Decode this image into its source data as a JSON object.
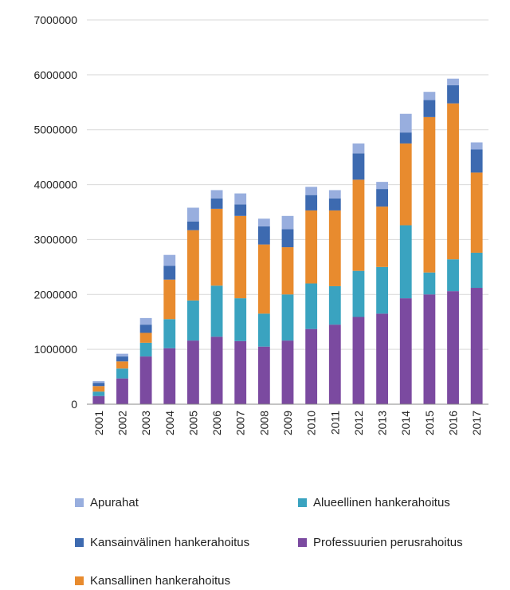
{
  "chart_data": {
    "type": "bar",
    "stacked": true,
    "categories": [
      "2001",
      "2002",
      "2003",
      "2004",
      "2005",
      "2006",
      "2007",
      "2008",
      "2009",
      "2010",
      "2011",
      "2012",
      "2013",
      "2014",
      "2015",
      "2016",
      "2017"
    ],
    "ylim": [
      0,
      7000000
    ],
    "yticks": [
      "0",
      "1000000",
      "2000000",
      "3000000",
      "4000000",
      "5000000",
      "6000000",
      "7000000"
    ],
    "ytick_values": [
      0,
      1000000,
      2000000,
      3000000,
      4000000,
      5000000,
      6000000,
      7000000
    ],
    "grid": true,
    "legend_placement": "bottom",
    "series": [
      {
        "name": "Professuurien perusrahoitus",
        "color": "#7b4aa0",
        "values": [
          150000,
          470000,
          870000,
          1020000,
          1160000,
          1230000,
          1150000,
          1050000,
          1160000,
          1370000,
          1450000,
          1590000,
          1650000,
          1930000,
          2000000,
          2060000,
          2120000
        ]
      },
      {
        "name": "Alueellinen hankerahoitus",
        "color": "#3aa3c0",
        "values": [
          80000,
          180000,
          250000,
          530000,
          730000,
          930000,
          780000,
          600000,
          840000,
          830000,
          700000,
          840000,
          850000,
          1330000,
          400000,
          580000,
          640000
        ]
      },
      {
        "name": "Kansallinen hankerahoitus",
        "color": "#e88b2e",
        "values": [
          100000,
          130000,
          180000,
          720000,
          1280000,
          1400000,
          1500000,
          1260000,
          860000,
          1330000,
          1380000,
          1660000,
          1100000,
          1490000,
          2830000,
          2840000,
          1460000
        ]
      },
      {
        "name": "Kansainvälinen hankerahoitus",
        "color": "#3d6ab0",
        "values": [
          60000,
          90000,
          150000,
          250000,
          160000,
          190000,
          210000,
          330000,
          330000,
          280000,
          220000,
          480000,
          320000,
          200000,
          310000,
          330000,
          420000
        ]
      },
      {
        "name": "Apurahat",
        "color": "#98aede",
        "values": [
          30000,
          50000,
          120000,
          200000,
          250000,
          150000,
          200000,
          140000,
          240000,
          150000,
          150000,
          180000,
          130000,
          340000,
          150000,
          120000,
          130000
        ]
      }
    ]
  },
  "legend": [
    {
      "label": "Apurahat",
      "color": "#98aede"
    },
    {
      "label": "Alueellinen hankerahoitus",
      "color": "#3aa3c0"
    },
    {
      "label": "Kansainvälinen hankerahoitus",
      "color": "#3d6ab0"
    },
    {
      "label": "Professuurien perusrahoitus",
      "color": "#7b4aa0"
    },
    {
      "label": "Kansallinen hankerahoitus",
      "color": "#e88b2e"
    }
  ]
}
